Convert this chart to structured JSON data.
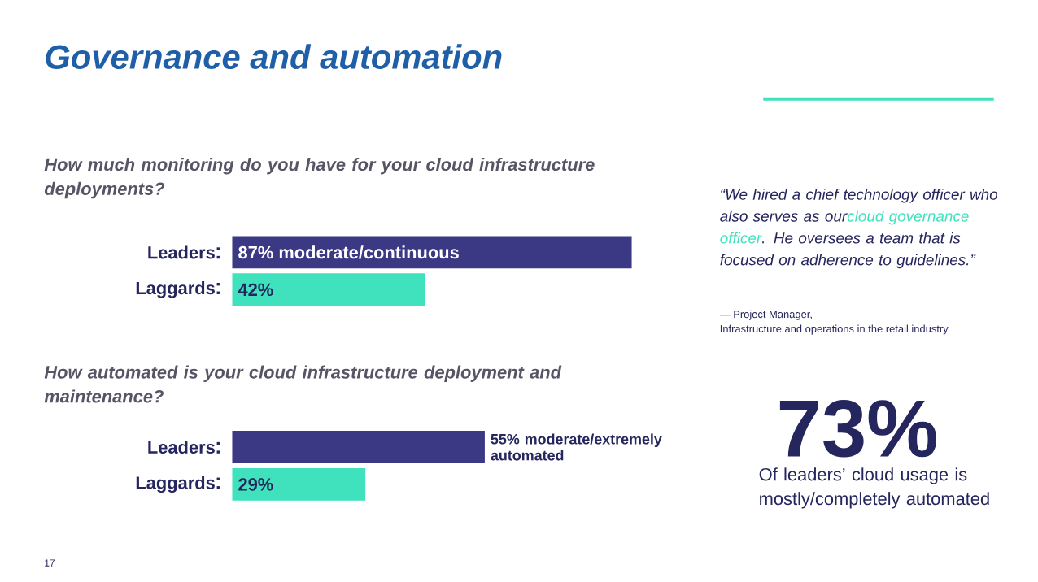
{
  "chart_data": [
    {
      "type": "bar",
      "orientation": "horizontal",
      "title": "Governance and automation",
      "subtitle": "How much monitoring do you have for your cloud infrastructure deployments?",
      "categories": [
        "Leaders",
        "Laggards"
      ],
      "values": [
        87,
        42
      ],
      "value_labels": [
        "87% moderate/continuous",
        "42%"
      ],
      "colors": [
        "#3b3884",
        "#3fe2bd"
      ],
      "tick_labels": "y"
    },
    {
      "type": "bar",
      "orientation": "horizontal",
      "title": "How automated is your cloud infrastructure deployment and maintenance?",
      "categories": [
        "Leaders",
        "Laggards"
      ],
      "values": [
        55,
        29
      ],
      "value_labels": [
        "55% moderate/extremely automated",
        "29%"
      ],
      "colors": [
        "#3b3884",
        "#3fe2bd"
      ],
      "tick_labels": "y"
    },
    {
      "type": "other",
      "annotations": [
        "“We hired a chief technology officer who also serves as our",
        "cloud governance officer",
        ". He oversees a team that is focused on adherence to guidelines.”",
        "— Project Manager,",
        "Infrastructure and operations in the retail industry",
        "73%",
        "Of leaders’ cloud usage is mostly/completely automated",
        "17"
      ]
    }
  ]
}
